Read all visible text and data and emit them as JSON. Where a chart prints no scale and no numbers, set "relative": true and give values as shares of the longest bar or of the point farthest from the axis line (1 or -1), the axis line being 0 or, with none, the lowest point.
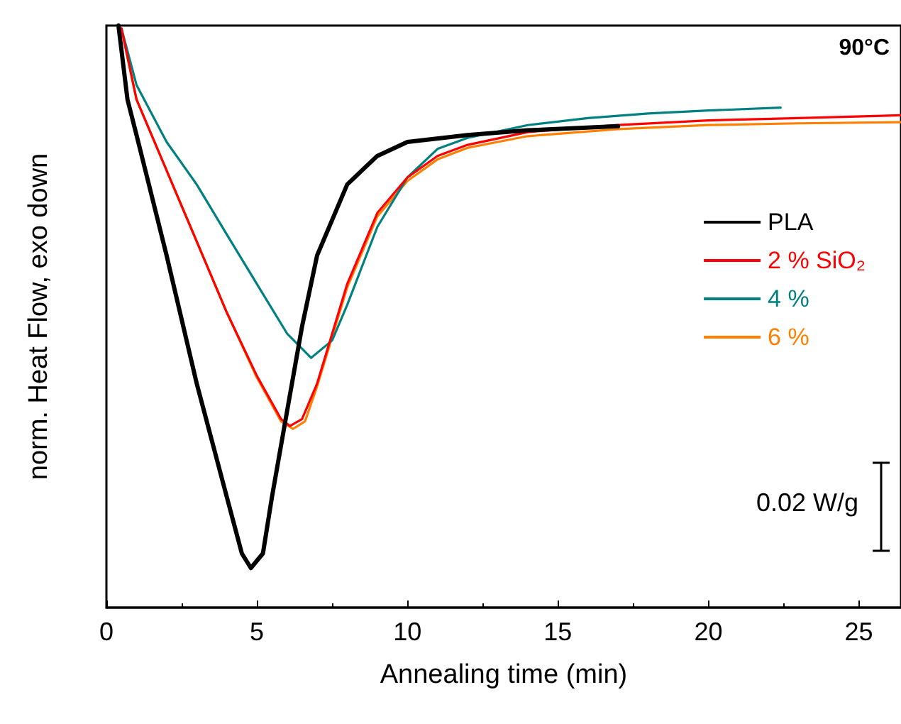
{
  "chart_data": {
    "type": "line",
    "relative": true,
    "xlabel": "Annealing time (min)",
    "ylabel": "norm. Heat Flow, exo down",
    "xlim": [
      0,
      26.4
    ],
    "xticks": [
      0,
      5,
      10,
      15,
      20,
      25
    ],
    "legend": "top right",
    "marker": "none",
    "line_style": "solid",
    "grid": false,
    "annotations": [
      "90°C",
      "0.02 W/g"
    ],
    "series": [
      {
        "name": "PLA",
        "color": "#000000",
        "x": [
          0.4,
          0.7,
          1,
          2,
          3,
          4,
          4.5,
          4.8,
          5.2,
          5.5,
          6,
          6.5,
          7,
          8,
          9,
          10,
          12,
          14,
          17
        ],
        "values": [
          1,
          0.873,
          0.812,
          0.605,
          0.385,
          0.19,
          0.093,
          0.068,
          0.093,
          0.19,
          0.337,
          0.483,
          0.605,
          0.727,
          0.776,
          0.8,
          0.812,
          0.82,
          0.827
        ]
      },
      {
        "name": "2 % SiO₂",
        "color": "#ff0000",
        "x": [
          0.5,
          1,
          2,
          3,
          4,
          5,
          5.8,
          6.1,
          6.5,
          7,
          8,
          9,
          10,
          11,
          12,
          14,
          17,
          20,
          23,
          26.4
        ],
        "values": [
          0.995,
          0.873,
          0.751,
          0.629,
          0.507,
          0.398,
          0.324,
          0.312,
          0.324,
          0.385,
          0.556,
          0.678,
          0.739,
          0.776,
          0.795,
          0.817,
          0.829,
          0.837,
          0.841,
          0.846
        ]
      },
      {
        "name": "4 %",
        "color": "#008080",
        "x": [
          0.5,
          1,
          2,
          3,
          4,
          5,
          6,
          6.8,
          7.5,
          8,
          9,
          10,
          11,
          12,
          14,
          16,
          18,
          20,
          22.4
        ],
        "values": [
          0.995,
          0.898,
          0.8,
          0.727,
          0.641,
          0.556,
          0.471,
          0.429,
          0.459,
          0.52,
          0.654,
          0.739,
          0.788,
          0.807,
          0.829,
          0.841,
          0.849,
          0.854,
          0.859
        ]
      },
      {
        "name": "6 %",
        "color": "#ff8000",
        "x": [
          0.5,
          1,
          2,
          3,
          4,
          5,
          5.8,
          6.2,
          6.6,
          7,
          8,
          9,
          10,
          11,
          12,
          14,
          17,
          20,
          23,
          26.4
        ],
        "values": [
          0.995,
          0.873,
          0.751,
          0.629,
          0.507,
          0.395,
          0.32,
          0.307,
          0.32,
          0.38,
          0.55,
          0.672,
          0.733,
          0.77,
          0.79,
          0.81,
          0.822,
          0.829,
          0.832,
          0.834
        ]
      }
    ]
  }
}
